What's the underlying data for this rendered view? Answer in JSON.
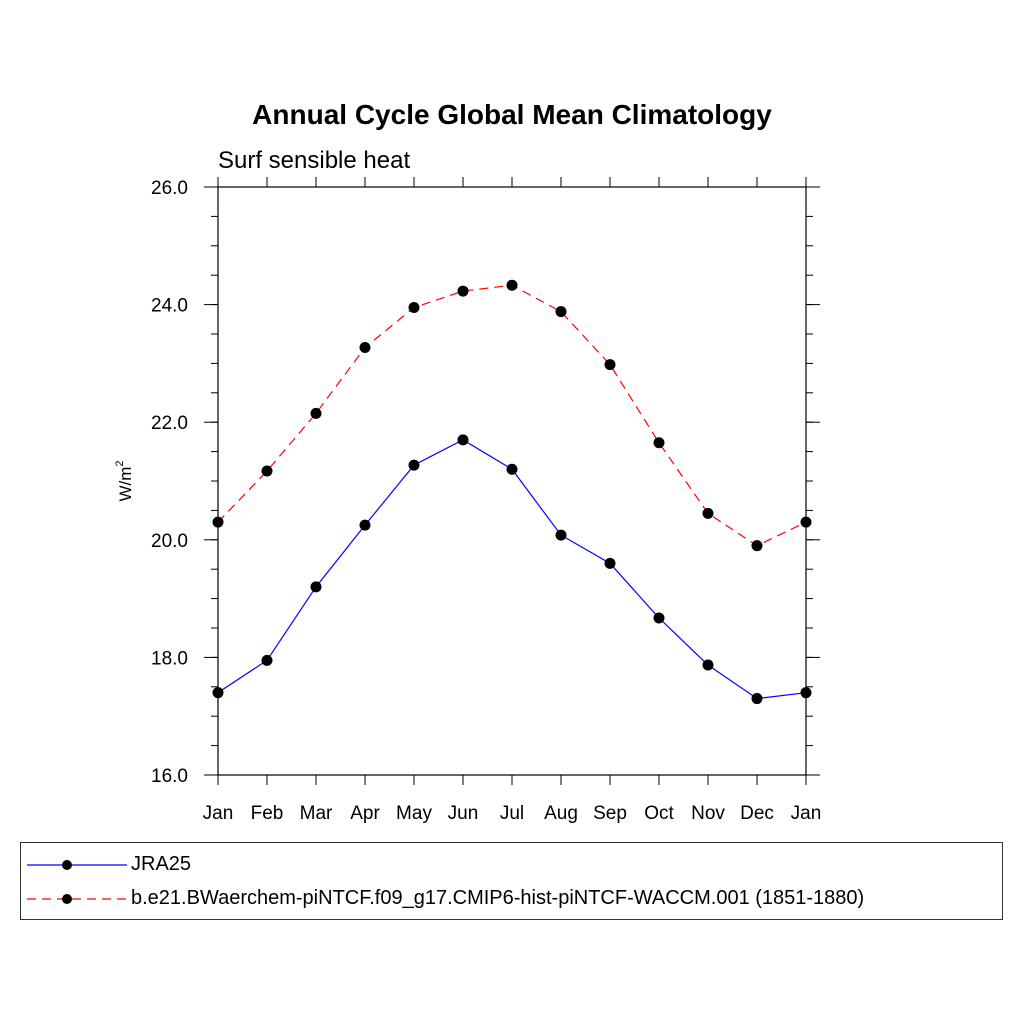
{
  "chart_data": {
    "type": "line",
    "title": "Annual Cycle Global Mean Climatology",
    "subtitle": "Surf sensible heat",
    "ylabel": "W/m",
    "ylabel_sup": "2",
    "xlabel": "",
    "categories": [
      "Jan",
      "Feb",
      "Mar",
      "Apr",
      "May",
      "Jun",
      "Jul",
      "Aug",
      "Sep",
      "Oct",
      "Nov",
      "Dec",
      "Jan"
    ],
    "ylim": [
      16.0,
      26.0
    ],
    "yticks": [
      "16.0",
      "18.0",
      "20.0",
      "22.0",
      "24.0",
      "26.0"
    ],
    "grid": false,
    "legend_placement": "bottom",
    "series": [
      {
        "name": "JRA25",
        "color": "#0000ff",
        "dash": "solid",
        "values": [
          17.4,
          17.95,
          19.2,
          20.25,
          21.27,
          21.7,
          21.2,
          20.08,
          19.6,
          18.67,
          17.87,
          17.3,
          17.4
        ]
      },
      {
        "name": "b.e21.BWaerchem-piNTCF.f09_g17.CMIP6-hist-piNTCF-WACCM.001 (1851-1880)",
        "color": "#ff0000",
        "dash": "dashed",
        "values": [
          20.3,
          21.17,
          22.15,
          23.27,
          23.95,
          24.23,
          24.33,
          23.88,
          22.98,
          21.65,
          20.45,
          19.9,
          20.3
        ]
      }
    ]
  }
}
